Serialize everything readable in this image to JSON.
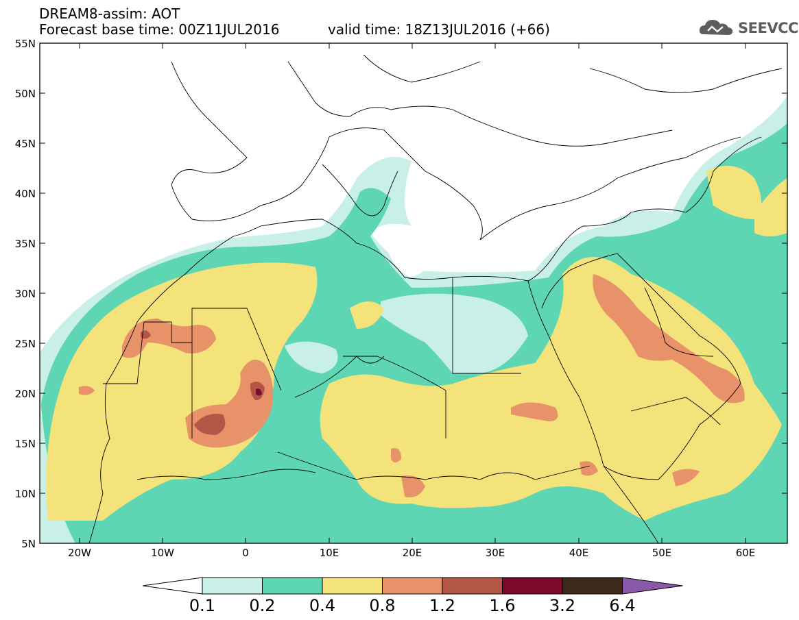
{
  "header": {
    "title": "DREAM8-assim: AOT",
    "base_time": "Forecast base time: 00Z11JUL2016",
    "valid_time": "valid time: 18Z13JUL2016 (+66)"
  },
  "logo": {
    "text": "SEEVCCC",
    "icon": "cloud-icon"
  },
  "map": {
    "variable": "AOT",
    "lat_range": [
      5,
      55
    ],
    "lon_range": [
      -25,
      65
    ],
    "lat_labels": [
      "55N",
      "50N",
      "45N",
      "40N",
      "35N",
      "30N",
      "25N",
      "20N",
      "15N",
      "10N",
      "5N"
    ],
    "lon_labels": [
      "20W",
      "10W",
      "0",
      "10E",
      "20E",
      "30E",
      "40E",
      "50E",
      "60E"
    ]
  },
  "colorbar": {
    "labels": [
      "0.1",
      "0.2",
      "0.4",
      "0.8",
      "1.2",
      "1.6",
      "3.2",
      "6.4"
    ],
    "colors": [
      "#c8f0e8",
      "#5ed6b4",
      "#f4e27a",
      "#e8926a",
      "#b45646",
      "#7c0a2c",
      "#3e2a1a",
      "#8a5aa8"
    ]
  }
}
